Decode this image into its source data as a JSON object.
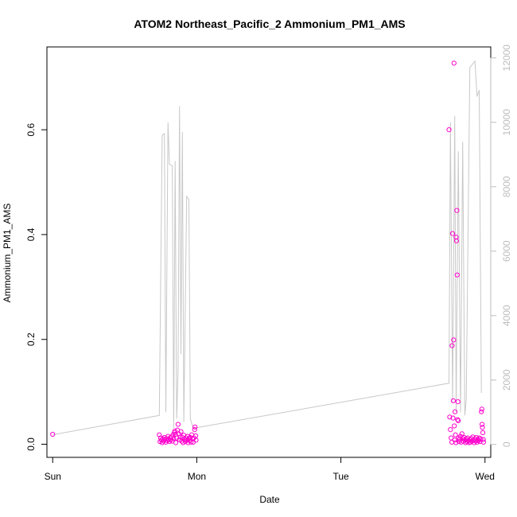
{
  "chart_data": {
    "type": "scatter",
    "title": "ATOM2 Northeast_Pacific_2 Ammonium_PM1_AMS",
    "xlabel": "Date",
    "ylabel": "Ammonium_PM1_AMS",
    "x_ticks": [
      "Sun",
      "Mon",
      "Tue",
      "Wed"
    ],
    "x_tick_values": [
      0,
      1,
      2,
      3
    ],
    "xlim": [
      -0.04,
      3.04
    ],
    "y_ticks": [
      0.0,
      0.2,
      0.4,
      0.6
    ],
    "ylim": [
      -0.025,
      0.758
    ],
    "y2_ticks": [
      0,
      2000,
      4000,
      6000,
      8000,
      10000,
      12000
    ],
    "y2lim": [
      -400,
      12340
    ],
    "grid": false,
    "series": [
      {
        "kind": "points",
        "axis": "left",
        "color": "#ff00cc",
        "points": [
          [
            0.0,
            0.019
          ],
          [
            0.74,
            0.018
          ],
          [
            0.745,
            0.005
          ],
          [
            0.75,
            0.012
          ],
          [
            0.755,
            0.008
          ],
          [
            0.76,
            0.003
          ],
          [
            0.765,
            0.01
          ],
          [
            0.77,
            0.006
          ],
          [
            0.775,
            0.013
          ],
          [
            0.78,
            0.009
          ],
          [
            0.785,
            0.004
          ],
          [
            0.79,
            0.011
          ],
          [
            0.795,
            0.007
          ],
          [
            0.8,
            0.015
          ],
          [
            0.805,
            0.009
          ],
          [
            0.81,
            0.005
          ],
          [
            0.815,
            0.012
          ],
          [
            0.82,
            0.008
          ],
          [
            0.825,
            0.014
          ],
          [
            0.83,
            0.006
          ],
          [
            0.835,
            0.018
          ],
          [
            0.84,
            0.011
          ],
          [
            0.845,
            0.022
          ],
          [
            0.848,
            0.025
          ],
          [
            0.852,
            0.019
          ],
          [
            0.855,
            0.003
          ],
          [
            0.86,
            0.012
          ],
          [
            0.865,
            0.027
          ],
          [
            0.87,
            0.038
          ],
          [
            0.875,
            0.02
          ],
          [
            0.88,
            0.009
          ],
          [
            0.885,
            0.014
          ],
          [
            0.89,
            0.024
          ],
          [
            0.895,
            0.006
          ],
          [
            0.9,
            0.013
          ],
          [
            0.905,
            0.003
          ],
          [
            0.91,
            0.017
          ],
          [
            0.915,
            0.009
          ],
          [
            0.92,
            0.005
          ],
          [
            0.925,
            0.012
          ],
          [
            0.93,
            0.008
          ],
          [
            0.935,
            0.015
          ],
          [
            0.94,
            0.003
          ],
          [
            0.945,
            0.011
          ],
          [
            0.95,
            0.007
          ],
          [
            0.955,
            0.013
          ],
          [
            0.96,
            0.004
          ],
          [
            0.965,
            0.018
          ],
          [
            0.97,
            0.01
          ],
          [
            0.975,
            0.004
          ],
          [
            0.98,
            0.012
          ],
          [
            0.985,
            0.028
          ],
          [
            0.988,
            0.033
          ],
          [
            0.992,
            0.016
          ],
          [
            0.995,
            0.008
          ],
          [
            2.75,
            0.6
          ],
          [
            2.755,
            0.052
          ],
          [
            2.76,
            0.028
          ],
          [
            2.765,
            0.012
          ],
          [
            2.77,
            0.004
          ],
          [
            2.772,
            0.188
          ],
          [
            2.775,
            0.402
          ],
          [
            2.778,
            0.05
          ],
          [
            2.78,
            0.083
          ],
          [
            2.782,
            0.199
          ],
          [
            2.785,
            0.727
          ],
          [
            2.787,
            0.035
          ],
          [
            2.79,
            0.008
          ],
          [
            2.792,
            0.062
          ],
          [
            2.795,
            0.018
          ],
          [
            2.798,
            0.003
          ],
          [
            2.8,
            0.395
          ],
          [
            2.802,
            0.388
          ],
          [
            2.805,
            0.446
          ],
          [
            2.807,
            0.323
          ],
          [
            2.81,
            0.047
          ],
          [
            2.812,
            0.081
          ],
          [
            2.815,
            0.045
          ],
          [
            2.818,
            0.012
          ],
          [
            2.82,
            0.005
          ],
          [
            2.825,
            0.009
          ],
          [
            2.83,
            0.015
          ],
          [
            2.835,
            0.004
          ],
          [
            2.84,
            0.02
          ],
          [
            2.845,
            0.011
          ],
          [
            2.85,
            0.006
          ],
          [
            2.855,
            0.013
          ],
          [
            2.86,
            0.008
          ],
          [
            2.865,
            0.003
          ],
          [
            2.87,
            0.01
          ],
          [
            2.875,
            0.005
          ],
          [
            2.88,
            0.012
          ],
          [
            2.885,
            0.007
          ],
          [
            2.89,
            0.003
          ],
          [
            2.895,
            0.009
          ],
          [
            2.9,
            0.004
          ],
          [
            2.905,
            0.011
          ],
          [
            2.91,
            0.006
          ],
          [
            2.915,
            0.014
          ],
          [
            2.92,
            0.008
          ],
          [
            2.925,
            0.003
          ],
          [
            2.93,
            0.01
          ],
          [
            2.935,
            0.006
          ],
          [
            2.94,
            0.013
          ],
          [
            2.945,
            0.004
          ],
          [
            2.95,
            0.009
          ],
          [
            2.955,
            0.007
          ],
          [
            2.96,
            0.012
          ],
          [
            2.965,
            0.005
          ],
          [
            2.97,
            0.01
          ],
          [
            2.975,
            0.062
          ],
          [
            2.978,
            0.067
          ],
          [
            2.98,
            0.038
          ],
          [
            2.982,
            0.032
          ],
          [
            2.985,
            0.022
          ],
          [
            2.988,
            0.009
          ],
          [
            2.99,
            0.004
          ]
        ]
      },
      {
        "kind": "line",
        "axis": "right",
        "color": "#c8c8c8",
        "points": [
          [
            0.0,
            300
          ],
          [
            0.74,
            900
          ],
          [
            0.76,
            9600
          ],
          [
            0.775,
            9650
          ],
          [
            0.785,
            1000
          ],
          [
            0.8,
            10000
          ],
          [
            0.81,
            8700
          ],
          [
            0.83,
            8650
          ],
          [
            0.84,
            500
          ],
          [
            0.85,
            8800
          ],
          [
            0.86,
            800
          ],
          [
            0.87,
            2300
          ],
          [
            0.88,
            10500
          ],
          [
            0.89,
            2800
          ],
          [
            0.9,
            9700
          ],
          [
            0.91,
            700
          ],
          [
            0.93,
            7700
          ],
          [
            0.945,
            7600
          ],
          [
            0.955,
            800
          ],
          [
            0.975,
            500
          ],
          [
            2.75,
            1900
          ],
          [
            2.76,
            10000
          ],
          [
            2.775,
            1300
          ],
          [
            2.79,
            10200
          ],
          [
            2.8,
            1000
          ],
          [
            2.815,
            9100
          ],
          [
            2.83,
            1000
          ],
          [
            2.845,
            9400
          ],
          [
            2.86,
            900
          ],
          [
            2.87,
            1400
          ],
          [
            2.895,
            11700
          ],
          [
            2.93,
            11900
          ],
          [
            2.945,
            10800
          ],
          [
            2.96,
            11000
          ],
          [
            2.975,
            1600
          ]
        ]
      }
    ]
  }
}
